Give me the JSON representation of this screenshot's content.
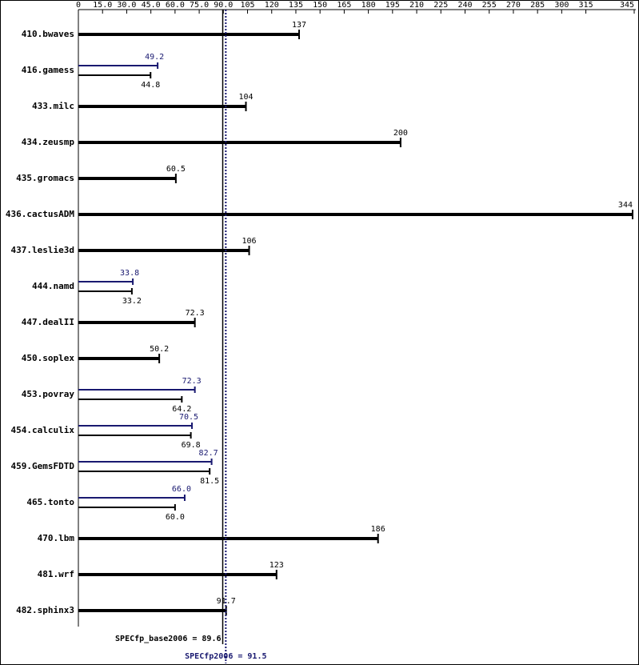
{
  "chart_data": {
    "type": "bar",
    "orientation": "horizontal",
    "categories": [
      "410.bwaves",
      "416.gamess",
      "433.milc",
      "434.zeusmp",
      "435.gromacs",
      "436.cactusADM",
      "437.leslie3d",
      "444.namd",
      "447.dealII",
      "450.soplex",
      "453.povray",
      "454.calculix",
      "459.GemsFDTD",
      "465.tonto",
      "470.lbm",
      "481.wrf",
      "482.sphinx3"
    ],
    "series": [
      {
        "color": "#000000",
        "values": [
          137,
          44.8,
          104,
          200,
          60.5,
          344,
          106,
          33.2,
          72.3,
          50.2,
          64.2,
          69.8,
          81.5,
          60.0,
          186,
          123,
          91.7
        ],
        "value_labels": [
          "137",
          "44.8",
          "104",
          "200",
          "60.5",
          "344",
          "106",
          "33.2",
          "72.3",
          "50.2",
          "64.2",
          "69.8",
          "81.5",
          "60.0",
          "186",
          "123",
          "91.7"
        ]
      },
      {
        "color": "#191970",
        "values": [
          null,
          49.2,
          null,
          null,
          null,
          null,
          null,
          33.8,
          null,
          null,
          72.3,
          70.5,
          82.7,
          66.0,
          null,
          null,
          null
        ],
        "value_labels": [
          null,
          "49.2",
          null,
          null,
          null,
          null,
          null,
          "33.8",
          null,
          null,
          "72.3",
          "70.5",
          "82.7",
          "66.0",
          null,
          null,
          null
        ]
      }
    ],
    "xlim": [
      0,
      345
    ],
    "xticks": [
      0,
      {
        "value": 15,
        "label": "15.0"
      },
      {
        "value": 30,
        "label": "30.0"
      },
      {
        "value": 45,
        "label": "45.0"
      },
      {
        "value": 60,
        "label": "60.0"
      },
      {
        "value": 75,
        "label": "75.0"
      },
      {
        "value": 90,
        "label": "90.0"
      },
      105,
      120,
      135,
      150,
      165,
      180,
      195,
      210,
      225,
      240,
      255,
      270,
      285,
      300,
      315,
      345
    ],
    "reference_lines": [
      {
        "label": "SPECfp_base2006 = 89.6",
        "value": 89.6,
        "color": "#000000",
        "style": "solid"
      },
      {
        "label": "SPECfp2006 = 91.5",
        "value": 91.5,
        "color": "#191970",
        "style": "dotted"
      }
    ]
  }
}
